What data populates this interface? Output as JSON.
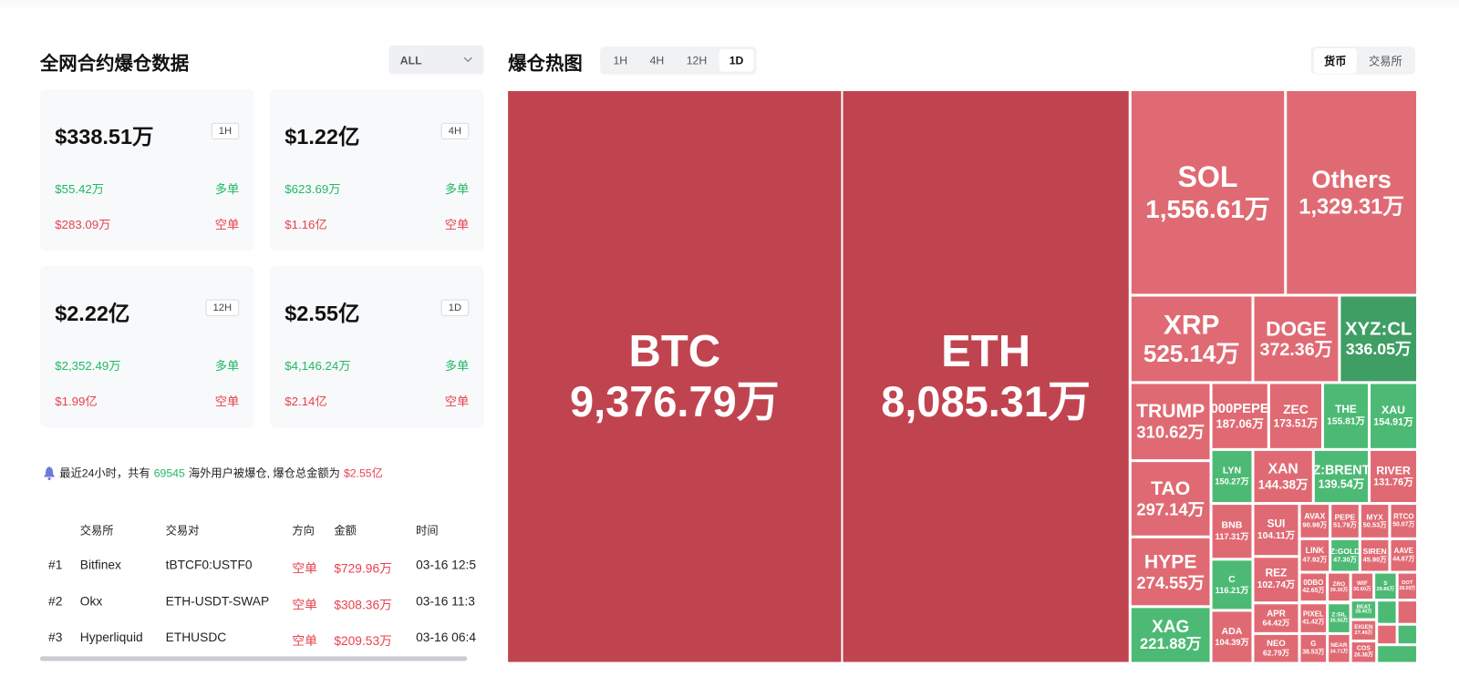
{
  "liquidation_panel": {
    "title": "全网合约爆仓数据",
    "filter": "ALL",
    "cards": [
      {
        "total": "$338.51万",
        "period": "1H",
        "long_value": "$55.42万",
        "long_label": "多单",
        "short_value": "$283.09万",
        "short_label": "空单"
      },
      {
        "total": "$1.22亿",
        "period": "4H",
        "long_value": "$623.69万",
        "long_label": "多单",
        "short_value": "$1.16亿",
        "short_label": "空单"
      },
      {
        "total": "$2.22亿",
        "period": "12H",
        "long_value": "$2,352.49万",
        "long_label": "多单",
        "short_value": "$1.99亿",
        "short_label": "空单"
      },
      {
        "total": "$2.55亿",
        "period": "1D",
        "long_value": "$4,146.24万",
        "long_label": "多单",
        "short_value": "$2.14亿",
        "short_label": "空单"
      }
    ],
    "notice": {
      "prefix": "最近24小时，共有",
      "users": "69545",
      "middle": "海外用户被爆仓, 爆仓总金额为",
      "amount": "$2.55亿"
    },
    "table": {
      "headers": [
        "交易所",
        "交易对",
        "方向",
        "金额",
        "时间"
      ],
      "rows": [
        [
          "#1",
          "Bitfinex",
          "tBTCF0:USTF0",
          "空单",
          "$729.96万",
          "03-16 12:5"
        ],
        [
          "#2",
          "Okx",
          "ETH-USDT-SWAP",
          "空单",
          "$308.36万",
          "03-16 11:3"
        ],
        [
          "#3",
          "Hyperliquid",
          "ETHUSDC",
          "空单",
          "$209.53万",
          "03-16 06:4"
        ]
      ]
    }
  },
  "heatmap": {
    "title": "爆仓热图",
    "periods": [
      "1H",
      "4H",
      "12H",
      "1D"
    ],
    "active_period": "1D",
    "group_tabs": [
      "货币",
      "交易所"
    ],
    "active_group": "货币",
    "tiles": [
      {
        "name": "BTC",
        "value": "9,376.79万",
        "color": "#c0444f"
      },
      {
        "name": "ETH",
        "value": "8,085.31万",
        "color": "#c0444f"
      },
      {
        "name": "SOL",
        "value": "1,556.61万",
        "color": "#e06a73"
      },
      {
        "name": "Others",
        "value": "1,329.31万",
        "color": "#e06a73"
      },
      {
        "name": "XRP",
        "value": "525.14万",
        "color": "#e06a73"
      },
      {
        "name": "DOGE",
        "value": "372.36万",
        "color": "#e06a73"
      },
      {
        "name": "XYZ:CL",
        "value": "336.05万",
        "color": "#3f9e63"
      },
      {
        "name": "TRUMP",
        "value": "310.62万",
        "color": "#e06a73"
      },
      {
        "name": "000PEPE",
        "value": "187.06万",
        "color": "#e06a73"
      },
      {
        "name": "ZEC",
        "value": "173.51万",
        "color": "#e06a73"
      },
      {
        "name": "THE",
        "value": "155.81万",
        "color": "#4cba74"
      },
      {
        "name": "XAU",
        "value": "154.91万",
        "color": "#4cba74"
      },
      {
        "name": "LYN",
        "value": "150.27万",
        "color": "#4cba74"
      },
      {
        "name": "XAN",
        "value": "144.38万",
        "color": "#e06a73"
      },
      {
        "name": "Z:BRENT",
        "value": "139.54万",
        "color": "#4cba74"
      },
      {
        "name": "RIVER",
        "value": "131.76万",
        "color": "#e06a73"
      },
      {
        "name": "TAO",
        "value": "297.14万",
        "color": "#e06a73"
      },
      {
        "name": "HYPE",
        "value": "274.55万",
        "color": "#e06a73"
      },
      {
        "name": "XAG",
        "value": "221.88万",
        "color": "#4cba74"
      },
      {
        "name": "BNB",
        "value": "117.31万",
        "color": "#e06a73"
      },
      {
        "name": "C",
        "value": "116.21万",
        "color": "#4cba74"
      },
      {
        "name": "ADA",
        "value": "104.39万",
        "color": "#e06a73"
      },
      {
        "name": "SUI",
        "value": "104.11万",
        "color": "#e06a73"
      },
      {
        "name": "REZ",
        "value": "102.74万",
        "color": "#e06a73"
      },
      {
        "name": "APR",
        "value": "64.42万",
        "color": "#e06a73"
      },
      {
        "name": "NEO",
        "value": "62.79万",
        "color": "#e06a73"
      },
      {
        "name": "AVAX",
        "value": "90.98万",
        "color": "#e06a73"
      },
      {
        "name": "PEPE",
        "value": "51.79万",
        "color": "#e06a73"
      },
      {
        "name": "MYX",
        "value": "50.53万",
        "color": "#e06a73"
      },
      {
        "name": "RTCO",
        "value": "50.07万",
        "color": "#e06a73"
      },
      {
        "name": "LINK",
        "value": "47.92万",
        "color": "#e06a73"
      },
      {
        "name": "Z:GOLD",
        "value": "47.30万",
        "color": "#4cba74"
      },
      {
        "name": "SIREN",
        "value": "45.90万",
        "color": "#e06a73"
      },
      {
        "name": "AAVE",
        "value": "44.87万",
        "color": "#e06a73"
      },
      {
        "name": "0DBO",
        "value": "42.65万",
        "color": "#e06a73"
      },
      {
        "name": "ZRO",
        "value": "39.30万",
        "color": "#e06a73"
      },
      {
        "name": "WIF",
        "value": "30.60万",
        "color": "#e06a73"
      },
      {
        "name": "S",
        "value": "29.80万",
        "color": "#4cba74"
      },
      {
        "name": "DOT",
        "value": "28.59万",
        "color": "#e06a73"
      },
      {
        "name": "PIXEL",
        "value": "41.42万",
        "color": "#e06a73"
      },
      {
        "name": "Z:SIL",
        "value": "35.55万",
        "color": "#4cba74"
      },
      {
        "name": "G",
        "value": "38.53万",
        "color": "#e06a73"
      },
      {
        "name": "NEAR",
        "value": "34.71万",
        "color": "#e06a73"
      },
      {
        "name": "BEAT",
        "value": "28.40万",
        "color": "#4cba74"
      },
      {
        "name": "EIGEN",
        "value": "27.49万",
        "color": "#e06a73"
      },
      {
        "name": "COS",
        "value": "26.38万",
        "color": "#e06a73"
      }
    ]
  }
}
